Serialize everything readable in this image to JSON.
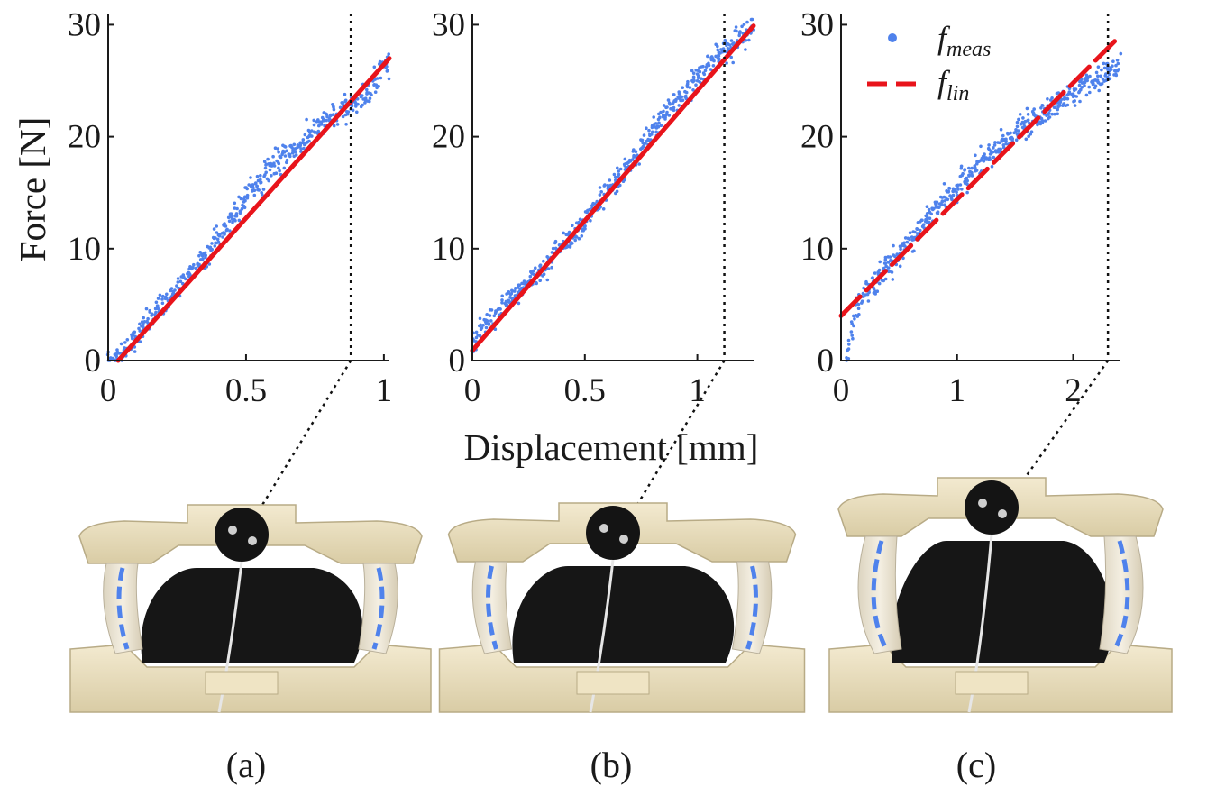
{
  "figure": {
    "ylabel": "Force [N]",
    "xlabel": "Displacement [mm]",
    "panel_labels": [
      "(a)",
      "(b)",
      "(c)"
    ],
    "photo_description": "Photographs of the compliant test mechanism under each loading case"
  },
  "legend": {
    "meas_main": "f",
    "meas_sub": "meas",
    "lin_main": "f",
    "lin_sub": "lin"
  },
  "colors": {
    "measured": "#4f82ec",
    "linear_fit": "#e8141b",
    "axis": "#1a1a1a"
  },
  "chart_data": [
    {
      "type": "scatter",
      "panel": "(a)",
      "xlabel": "Displacement [mm]",
      "ylabel": "Force [N]",
      "xlim": [
        0,
        1.02
      ],
      "ylim": [
        0,
        31
      ],
      "xticks": [
        0,
        0.5,
        1
      ],
      "xtick_labels": [
        "0",
        "0.5",
        "1"
      ],
      "yticks": [
        0,
        10,
        20,
        30
      ],
      "ytick_labels": [
        "0",
        "10",
        "20",
        "30"
      ],
      "limit_line_x": 0.88,
      "series": [
        {
          "name": "f_meas",
          "style": "points",
          "x_range": [
            0.0,
            1.02
          ],
          "points": [
            [
              0.0,
              0.0
            ],
            [
              0.05,
              0.4
            ],
            [
              0.1,
              2.0
            ],
            [
              0.15,
              3.6
            ],
            [
              0.2,
              5.0
            ],
            [
              0.25,
              6.4
            ],
            [
              0.3,
              7.9
            ],
            [
              0.35,
              9.3
            ],
            [
              0.4,
              11.0
            ],
            [
              0.45,
              12.8
            ],
            [
              0.5,
              14.6
            ],
            [
              0.55,
              16.0
            ],
            [
              0.6,
              17.6
            ],
            [
              0.65,
              18.4
            ],
            [
              0.7,
              19.3
            ],
            [
              0.75,
              20.4
            ],
            [
              0.8,
              21.5
            ],
            [
              0.85,
              22.3
            ],
            [
              0.9,
              23.1
            ],
            [
              0.95,
              24.2
            ],
            [
              1.0,
              26.5
            ]
          ]
        },
        {
          "name": "f_lin",
          "style": "line",
          "slope": 27.45,
          "intercept": -1.0
        }
      ]
    },
    {
      "type": "scatter",
      "panel": "(b)",
      "xlabel": "Displacement [mm]",
      "ylabel": "Force [N]",
      "xlim": [
        0,
        1.25
      ],
      "ylim": [
        0,
        31
      ],
      "xticks": [
        0,
        0.5,
        1
      ],
      "xtick_labels": [
        "0",
        "0.5",
        "1"
      ],
      "yticks": [
        0,
        10,
        20,
        30
      ],
      "ytick_labels": [
        "0",
        "10",
        "20",
        "30"
      ],
      "limit_line_x": 1.12,
      "series": [
        {
          "name": "f_meas",
          "style": "points",
          "x_range": [
            0.0,
            1.25
          ],
          "points": [
            [
              0.0,
              1.5
            ],
            [
              0.05,
              3.0
            ],
            [
              0.1,
              4.0
            ],
            [
              0.15,
              5.0
            ],
            [
              0.2,
              6.0
            ],
            [
              0.25,
              7.0
            ],
            [
              0.3,
              8.0
            ],
            [
              0.4,
              10.3
            ],
            [
              0.5,
              12.5
            ],
            [
              0.6,
              15.0
            ],
            [
              0.7,
              17.6
            ],
            [
              0.8,
              20.4
            ],
            [
              0.9,
              23.0
            ],
            [
              1.0,
              25.3
            ],
            [
              1.1,
              27.4
            ],
            [
              1.2,
              29.0
            ],
            [
              1.25,
              29.8
            ]
          ]
        },
        {
          "name": "f_lin",
          "style": "line",
          "slope": 23.2,
          "intercept": 0.9
        }
      ]
    },
    {
      "type": "scatter",
      "panel": "(c)",
      "xlabel": "Displacement [mm]",
      "ylabel": "Force [N]",
      "xlim": [
        0,
        2.4
      ],
      "ylim": [
        0,
        31
      ],
      "xticks": [
        0,
        1,
        2
      ],
      "xtick_labels": [
        "0",
        "1",
        "2"
      ],
      "yticks": [
        0,
        10,
        20,
        30
      ],
      "ytick_labels": [
        "0",
        "10",
        "20",
        "30"
      ],
      "limit_line_x": 2.3,
      "legend_position": "top-right",
      "series": [
        {
          "name": "f_meas",
          "style": "points",
          "x_range": [
            0.05,
            2.4
          ],
          "points": [
            [
              0.05,
              0.0
            ],
            [
              0.08,
              2.0
            ],
            [
              0.1,
              3.5
            ],
            [
              0.15,
              5.0
            ],
            [
              0.2,
              6.0
            ],
            [
              0.3,
              7.2
            ],
            [
              0.5,
              9.5
            ],
            [
              0.7,
              12.0
            ],
            [
              0.9,
              14.5
            ],
            [
              1.1,
              16.5
            ],
            [
              1.3,
              18.5
            ],
            [
              1.5,
              20.3
            ],
            [
              1.7,
              21.8
            ],
            [
              1.9,
              23.3
            ],
            [
              2.1,
              24.6
            ],
            [
              2.2,
              25.0
            ],
            [
              2.3,
              25.6
            ],
            [
              2.4,
              26.3
            ]
          ]
        },
        {
          "name": "f_lin",
          "style": "dashed-line",
          "slope": 10.4,
          "intercept": 4.0
        }
      ]
    }
  ]
}
